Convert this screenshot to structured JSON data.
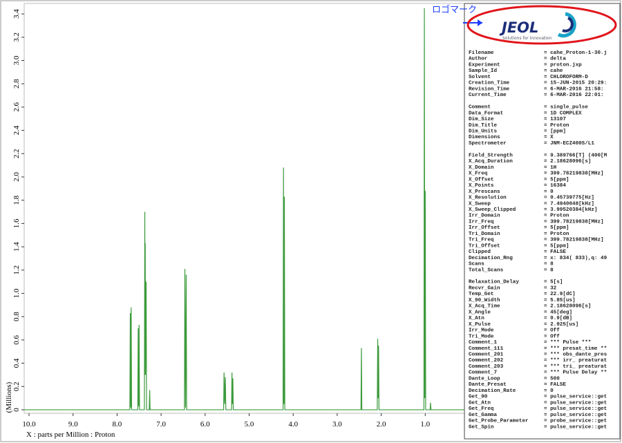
{
  "chart_data": {
    "type": "line",
    "x_label": "X : parts per Million : Proton",
    "y_label": "(Millions)",
    "x": [
      10.11,
      7.71,
      7.7,
      7.69,
      7.68,
      7.67,
      7.53,
      7.52,
      7.51,
      7.5,
      7.49,
      7.38,
      7.37,
      7.365,
      7.36,
      7.355,
      7.34,
      7.33,
      7.27,
      7.26,
      7.25,
      6.47,
      6.46,
      6.445,
      6.43,
      6.42,
      5.58,
      5.57,
      5.555,
      5.54,
      5.53,
      5.4,
      5.39,
      5.38,
      5.37,
      5.36,
      4.23,
      4.22,
      4.21,
      4.2,
      4.19,
      2.46,
      2.45,
      2.44,
      2.09,
      2.08,
      2.07,
      2.06,
      2.05,
      1.03,
      1.02,
      1.01,
      1.0,
      0.99,
      0.89,
      0.88,
      0.87,
      0.11
    ],
    "values": [
      0,
      0,
      0.83,
      0.02,
      0.88,
      0,
      0,
      0.7,
      0.03,
      0.73,
      0,
      0,
      1.7,
      0.3,
      1.43,
      0.3,
      1.1,
      0,
      0,
      0.17,
      0,
      0,
      1.21,
      0.02,
      1.16,
      0,
      0,
      0.32,
      0.05,
      0.28,
      0,
      0,
      0.32,
      0.05,
      0.27,
      0,
      0,
      2.08,
      0.05,
      1.83,
      0,
      0,
      0.53,
      0,
      0,
      0.61,
      0.1,
      0.55,
      0,
      0,
      3.45,
      0.1,
      1.88,
      0,
      0,
      0.06,
      0,
      0
    ],
    "color": "#3c9a3c",
    "xlim": [
      10.11,
      0.11
    ],
    "ylim": [
      -0.03,
      3.49
    ],
    "xticks": [
      {
        "value": 10,
        "label": "10.0"
      },
      {
        "value": 9,
        "label": "9.0"
      },
      {
        "value": 8,
        "label": "8.0"
      },
      {
        "value": 7,
        "label": "7.0"
      },
      {
        "value": 6,
        "label": "6.0"
      },
      {
        "value": 5,
        "label": "5.0"
      },
      {
        "value": 4,
        "label": "4.0"
      },
      {
        "value": 3,
        "label": "3.0"
      },
      {
        "value": 2,
        "label": "2.0"
      },
      {
        "value": 1,
        "label": "1.0"
      }
    ],
    "yticks": [
      0,
      0.2,
      0.4,
      0.6,
      0.8,
      {
        "value": 1,
        "label": "1.0"
      },
      1.2,
      1.4,
      1.6,
      1.8,
      {
        "value": 2,
        "label": "2.0"
      },
      2.2,
      2.4,
      2.6,
      2.8,
      {
        "value": 3,
        "label": "3.0"
      },
      3.2,
      3.4
    ]
  },
  "logo": {
    "annotation": "ロゴマーク",
    "brand": "JEOL",
    "tagline": "Solutions for Innovation"
  },
  "parameters": [
    [
      [
        "Filename",
        "= cahe_Proton-1-30.j"
      ],
      [
        "Author",
        "= delta"
      ],
      [
        "Experiment",
        "= proton.jxp"
      ],
      [
        "Sample_Id",
        "= cahe"
      ],
      [
        "Solvent",
        "= CHLOROFORM-D"
      ],
      [
        "Creation_Time",
        "= 15-JUN-2015 20:29:"
      ],
      [
        "Revision_Time",
        "=  6-MAR-2016 21:58:"
      ],
      [
        "Current_Time",
        "=  6-MAR-2016 22:01:"
      ]
    ],
    [
      [
        "Comment",
        "= single_pulse"
      ],
      [
        "Data_Format",
        "= 1D COMPLEX"
      ],
      [
        "Dim_Size",
        "= 13107"
      ],
      [
        "Dim_Title",
        "= Proton"
      ],
      [
        "Dim_Units",
        "= [ppm]"
      ],
      [
        "Dimensions",
        "= X"
      ],
      [
        "Spectrometer",
        "= JNM-ECZ400S/L1"
      ]
    ],
    [
      [
        "Field_Strength",
        "= 9.389766[T] (400[M"
      ],
      [
        "X_Acq_Duration",
        "= 2.18628096[s]"
      ],
      [
        "X_Domain",
        "= 1H"
      ],
      [
        "X_Freq",
        "= 399.78219838[MHz]"
      ],
      [
        "X_Offset",
        "= 5[ppm]"
      ],
      [
        "X_Points",
        "= 16384"
      ],
      [
        "X_Prescans",
        "= 0"
      ],
      [
        "X_Resolution",
        "= 0.45739775[Hz]"
      ],
      [
        "X_Sweep",
        "= 7.4940048[kHz]"
      ],
      [
        "X_Sweep_Clipped",
        "= 3.99520384[kHz]"
      ],
      [
        "Irr_Domain",
        "= Proton"
      ],
      [
        "Irr_Freq",
        "= 399.78219838[MHz]"
      ],
      [
        "Irr_Offset",
        "= 5[ppm]"
      ],
      [
        "Tri_Domain",
        "= Proton"
      ],
      [
        "Tri_Freq",
        "= 399.78219838[MHz]"
      ],
      [
        "Tri_Offset",
        "= 5[ppm]"
      ],
      [
        "Clipped",
        "= FALSE"
      ],
      [
        "Decimation_Rng",
        "= x: 834( 833),q: 49"
      ],
      [
        "Scans",
        "= 8"
      ],
      [
        "Total_Scans",
        "= 8"
      ]
    ],
    [
      [
        "Relaxation_Delay",
        "= 5[s]"
      ],
      [
        "Recvr_Gain",
        "= 32"
      ],
      [
        "Temp_Get",
        "= 22.9[dC]"
      ],
      [
        "X_90_Width",
        "= 5.85[us]"
      ],
      [
        "X_Acq_Time",
        "= 2.18628096[s]"
      ],
      [
        "X_Angle",
        "= 45[deg]"
      ],
      [
        "X_Atn",
        "= 0.9[dB]"
      ],
      [
        "X_Pulse",
        "= 2.925[us]"
      ],
      [
        "Irr_Mode",
        "= Off"
      ],
      [
        "Tri_Mode",
        "= Off"
      ],
      [
        "Comment_1",
        "= *** Pulse ***"
      ],
      [
        "Comment_111",
        "= *** presat_time **"
      ],
      [
        "Comment_201",
        "= *** obs_dante_pres"
      ],
      [
        "Comment_202",
        "= *** irr_ preaturat"
      ],
      [
        "Comment_203",
        "= *** tri_ preaturat"
      ],
      [
        "Comment_7",
        "= *** Pulse Delay **"
      ],
      [
        "Dante_Loop",
        "= 500"
      ],
      [
        "Dante_Presat",
        "= FALSE"
      ],
      [
        "Decimation_Rate",
        "= 0"
      ],
      [
        "Get_90",
        "= pulse_service::get"
      ],
      [
        "Get_Atn",
        "= pulse_service::get"
      ],
      [
        "Get_Freq",
        "= pulse_service::get"
      ],
      [
        "Get_Gamma",
        "= pulse_service::get"
      ],
      [
        "Get_Probe_Parameter",
        "= probe_service::get"
      ],
      [
        "Get_Spin",
        "= pulse_service::get"
      ]
    ]
  ]
}
